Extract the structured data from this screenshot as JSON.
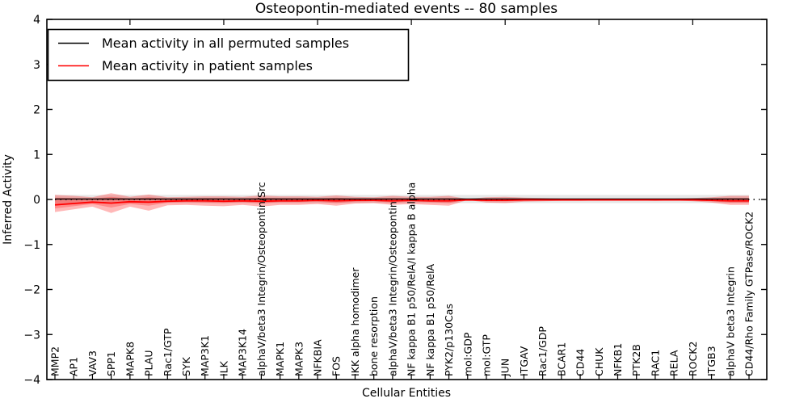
{
  "figure": {
    "title": "Osteopontin-mediated events -- 80 samples",
    "xlabel": "Cellular Entities",
    "ylabel": "Inferred Activity"
  },
  "legend": {
    "items": [
      {
        "label": "Mean activity in all permuted samples",
        "color": "#000000"
      },
      {
        "label": "Mean activity in patient samples",
        "color": "#ff0000"
      }
    ]
  },
  "chart_data": {
    "type": "line",
    "title": "Osteopontin-mediated events -- 80 samples",
    "xlabel": "Cellular Entities",
    "ylabel": "Inferred Activity",
    "ylim": [
      -4,
      4
    ],
    "yticks": [
      4,
      3,
      2,
      1,
      0,
      -1,
      -2,
      -3,
      -4
    ],
    "ytick_labels": [
      "4",
      "3",
      "2",
      "1",
      "0",
      "−1",
      "−2",
      "−3",
      "−4"
    ],
    "grid": false,
    "legend_position": "upper left",
    "categories": [
      "MMP2",
      "AP1",
      "VAV3",
      "SPP1",
      "MAPK8",
      "PLAU",
      "Rac1/GTP",
      "SYK",
      "MAP3K1",
      "ILK",
      "MAP3K14",
      "alphaV/beta3 Integrin/Osteopontin/Src",
      "MAPK1",
      "MAPK3",
      "NFKBIA",
      "FOS",
      "IKK alpha homodimer",
      "bone resorption",
      "alphaV/beta3 Integrin/Osteopontin",
      "NF kappa B1 p50/RelA/I kappa B alpha",
      "NF kappa B1 p50/RelA",
      "PYK2/p130Cas",
      "mol:GDP",
      "mol:GTP",
      "JUN",
      "ITGAV",
      "Rac1/GDP",
      "BCAR1",
      "CD44",
      "CHUK",
      "NFKB1",
      "PTK2B",
      "RAC1",
      "RELA",
      "ROCK2",
      "ITGB3",
      "alphaV beta3 Integrin",
      "CD44/Rho Family GTPase/ROCK2"
    ],
    "series": [
      {
        "name": "Mean activity in all permuted samples",
        "color": "#000000",
        "style": "solid",
        "width": 1.4,
        "values": [
          0.01,
          0.01,
          0.01,
          0.01,
          0.01,
          0.01,
          0.01,
          0.01,
          0.01,
          0.01,
          0.01,
          0.01,
          0.01,
          0.01,
          0.01,
          0.01,
          0.01,
          0.01,
          0.01,
          0.01,
          0.01,
          0.01,
          0.01,
          0.01,
          0.01,
          0.01,
          0.01,
          0.01,
          0.01,
          0.01,
          0.01,
          0.01,
          0.01,
          0.01,
          0.01,
          0.01,
          0.01,
          0.01
        ]
      },
      {
        "name": "Mean activity in patient samples",
        "color": "#ff0000",
        "style": "solid",
        "width": 1.8,
        "values": [
          -0.12,
          -0.09,
          -0.06,
          -0.08,
          -0.05,
          -0.06,
          -0.04,
          -0.03,
          -0.03,
          -0.04,
          -0.03,
          -0.04,
          -0.03,
          -0.03,
          -0.02,
          -0.03,
          -0.02,
          -0.02,
          -0.03,
          -0.02,
          -0.03,
          -0.03,
          -0.01,
          -0.02,
          -0.02,
          -0.01,
          -0.01,
          -0.01,
          -0.01,
          -0.01,
          -0.01,
          -0.01,
          -0.01,
          -0.01,
          -0.01,
          -0.02,
          -0.03,
          -0.03
        ]
      }
    ],
    "zero_line": {
      "y": 0,
      "color": "#000000",
      "style": "dotted"
    },
    "bands": [
      {
        "name": "permuted-sample-range",
        "color": "#bbbbbb",
        "opacity": 0.35,
        "upper": 0.1,
        "lower": -0.08
      },
      {
        "name": "patient-sample-range-outer",
        "color": "#ff0000",
        "opacity": 0.28,
        "upper": [
          0.1,
          0.08,
          0.05,
          0.14,
          0.06,
          0.11,
          0.05,
          0.06,
          0.07,
          0.07,
          0.06,
          0.09,
          0.07,
          0.07,
          0.06,
          0.09,
          0.06,
          0.05,
          0.08,
          0.06,
          0.06,
          0.08,
          0.01,
          0.05,
          0.06,
          0.04,
          0.03,
          0.02,
          0.02,
          0.02,
          0.02,
          0.02,
          0.02,
          0.02,
          0.03,
          0.05,
          0.08,
          0.08
        ],
        "lower": [
          -0.28,
          -0.22,
          -0.16,
          -0.3,
          -0.16,
          -0.25,
          -0.13,
          -0.12,
          -0.14,
          -0.15,
          -0.12,
          -0.16,
          -0.12,
          -0.12,
          -0.1,
          -0.14,
          -0.09,
          -0.08,
          -0.12,
          -0.1,
          -0.12,
          -0.14,
          -0.01,
          -0.07,
          -0.08,
          -0.05,
          -0.04,
          -0.03,
          -0.03,
          -0.02,
          -0.02,
          -0.02,
          -0.03,
          -0.02,
          -0.04,
          -0.07,
          -0.12,
          -0.12
        ]
      },
      {
        "name": "patient-sample-range-inner",
        "color": "#ff0000",
        "opacity": 0.25,
        "upper": [
          0.04,
          0.03,
          0.02,
          0.06,
          0.02,
          0.05,
          0.02,
          0.02,
          0.03,
          0.03,
          0.02,
          0.04,
          0.03,
          0.03,
          0.02,
          0.04,
          0.02,
          0.02,
          0.03,
          0.02,
          0.02,
          0.03,
          0.0,
          0.02,
          0.02,
          0.02,
          0.01,
          0.01,
          0.01,
          0.01,
          0.01,
          0.01,
          0.01,
          0.01,
          0.01,
          0.02,
          0.03,
          0.03
        ],
        "lower": [
          -0.2,
          -0.15,
          -0.1,
          -0.18,
          -0.1,
          -0.14,
          -0.07,
          -0.06,
          -0.07,
          -0.08,
          -0.06,
          -0.09,
          -0.06,
          -0.06,
          -0.05,
          -0.08,
          -0.05,
          -0.04,
          -0.07,
          -0.05,
          -0.06,
          -0.08,
          0.0,
          -0.04,
          -0.04,
          -0.03,
          -0.02,
          -0.02,
          -0.02,
          -0.01,
          -0.01,
          -0.01,
          -0.02,
          -0.01,
          -0.02,
          -0.04,
          -0.07,
          -0.07
        ]
      }
    ]
  }
}
